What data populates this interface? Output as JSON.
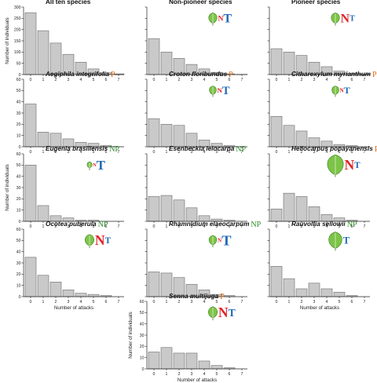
{
  "chart_data": [
    {
      "type": "bar",
      "title": "All ten species",
      "badge": "",
      "ylabel": "Number of individuals",
      "xlabel": "",
      "ylim": [
        0,
        300
      ],
      "yticks": [
        0,
        50,
        100,
        150,
        200,
        250,
        300
      ],
      "categories": [
        "0",
        "1",
        "2",
        "3",
        "4",
        "5",
        "6",
        "7"
      ],
      "values": [
        275,
        195,
        140,
        90,
        55,
        25,
        8,
        3
      ],
      "symbol": null
    },
    {
      "type": "bar",
      "title": "Non-pioneer species",
      "badge": "",
      "ylabel": "",
      "xlabel": "",
      "ylim": [
        0,
        300
      ],
      "yticks": [],
      "categories": [
        "0",
        "1",
        "2",
        "3",
        "4",
        "5",
        "6",
        "7"
      ],
      "values": [
        160,
        100,
        72,
        45,
        25,
        10,
        3,
        1
      ],
      "symbol": {
        "leaf": 0.6,
        "n": 0.6,
        "t": 1.0
      }
    },
    {
      "type": "bar",
      "title": "Pioneer species",
      "badge": "",
      "ylabel": "",
      "xlabel": "",
      "ylim": [
        0,
        300
      ],
      "yticks": [],
      "categories": [
        "0",
        "1",
        "2",
        "3",
        "4",
        "5",
        "6",
        "7"
      ],
      "values": [
        115,
        100,
        85,
        55,
        35,
        15,
        5,
        2
      ],
      "symbol": {
        "leaf": 0.6,
        "n": 1.0,
        "t": 0.65
      }
    },
    {
      "type": "bar",
      "title": "Aegiphila integrifolia",
      "badge": "P",
      "ylabel": "",
      "xlabel": "",
      "ylim": [
        0,
        60
      ],
      "yticks": [
        0,
        10,
        20,
        30,
        40,
        50,
        60
      ],
      "categories": [
        "0",
        "1",
        "2",
        "3",
        "4",
        "5",
        "6",
        "7"
      ],
      "values": [
        38,
        13,
        12,
        7,
        4,
        3,
        1,
        0
      ],
      "symbol": null
    },
    {
      "type": "bar",
      "title": "Croton floribundus",
      "badge": "P",
      "ylabel": "",
      "xlabel": "",
      "ylim": [
        0,
        60
      ],
      "yticks": [],
      "categories": [
        "0",
        "1",
        "2",
        "3",
        "4",
        "5",
        "6",
        "7"
      ],
      "values": [
        25,
        20,
        19,
        12,
        6,
        3,
        1,
        0
      ],
      "symbol": {
        "leaf": 0.5,
        "n": 0.55,
        "t": 0.9
      }
    },
    {
      "type": "bar",
      "title": "Citharexylum myrianthum",
      "badge": "P",
      "ylabel": "",
      "xlabel": "",
      "ylim": [
        0,
        60
      ],
      "yticks": [],
      "categories": [
        "0",
        "1",
        "2",
        "3",
        "4",
        "5",
        "6",
        "7"
      ],
      "values": [
        27,
        19,
        14,
        8,
        5,
        2,
        1,
        0
      ],
      "symbol": {
        "leaf": 0.5,
        "n": 0.45,
        "t": 0.75
      }
    },
    {
      "type": "bar",
      "title": "Eugenia brasiliensis",
      "badge": "NP",
      "ylabel": "Number of individuals",
      "xlabel": "",
      "ylim": [
        0,
        60
      ],
      "yticks": [
        0,
        10,
        20,
        30,
        40,
        50,
        60
      ],
      "categories": [
        "0",
        "1",
        "2",
        "3",
        "4",
        "5",
        "6",
        "7"
      ],
      "values": [
        50,
        14,
        5,
        3,
        1,
        1,
        0,
        0
      ],
      "symbol": {
        "leaf": 0.35,
        "n": 0.4,
        "t": 1.05
      }
    },
    {
      "type": "bar",
      "title": "Esenbeckia leiocarpa",
      "badge": "NP",
      "ylabel": "",
      "xlabel": "",
      "ylim": [
        0,
        60
      ],
      "yticks": [],
      "categories": [
        "0",
        "1",
        "2",
        "3",
        "4",
        "5",
        "6",
        "7"
      ],
      "values": [
        22,
        23,
        19,
        12,
        5,
        2,
        1,
        0
      ],
      "symbol": null
    },
    {
      "type": "bar",
      "title": "Heliocarpus popayanensis",
      "badge": "P",
      "ylabel": "",
      "xlabel": "",
      "ylim": [
        0,
        60
      ],
      "yticks": [],
      "categories": [
        "0",
        "1",
        "2",
        "3",
        "4",
        "5",
        "6",
        "7"
      ],
      "values": [
        11,
        25,
        22,
        13,
        6,
        3,
        1,
        0
      ],
      "symbol": {
        "leaf": 1.15,
        "n": 1.1,
        "t": 0.7
      }
    },
    {
      "type": "bar",
      "title": "Ocotea puberula",
      "badge": "NP",
      "ylabel": "",
      "xlabel": "Number of attacks",
      "ylim": [
        0,
        60
      ],
      "yticks": [
        0,
        10,
        20,
        30,
        40,
        50,
        60
      ],
      "categories": [
        "0",
        "1",
        "2",
        "3",
        "4",
        "5",
        "6",
        "7"
      ],
      "values": [
        35,
        19,
        13,
        6,
        3,
        2,
        1,
        0
      ],
      "symbol": {
        "leaf": 0.65,
        "n": 1.1,
        "t": 0.7
      }
    },
    {
      "type": "bar",
      "title": "Rhamnidium elaeocarpum",
      "badge": "NP",
      "ylabel": "",
      "xlabel": "",
      "ylim": [
        0,
        60
      ],
      "yticks": [],
      "categories": [
        "0",
        "1",
        "2",
        "3",
        "4",
        "5",
        "6",
        "7"
      ],
      "values": [
        22,
        21,
        17,
        11,
        6,
        2,
        1,
        0
      ],
      "symbol": {
        "leaf": 0.55,
        "n": 0.45,
        "t": 1.15
      }
    },
    {
      "type": "bar",
      "title": "Rauvolfia sellowii",
      "badge": "NP",
      "ylabel": "",
      "xlabel": "Number of attacks",
      "ylim": [
        0,
        60
      ],
      "yticks": [],
      "categories": [
        "0",
        "1",
        "2",
        "3",
        "4",
        "5",
        "6",
        "7"
      ],
      "values": [
        27,
        16,
        7,
        12,
        7,
        4,
        1,
        0
      ],
      "symbol": {
        "leaf": 0.95,
        "n": 0.0,
        "t": 0.8
      }
    },
    {
      "type": "bar",
      "title": "Senna multijuga",
      "badge": "P",
      "ylabel": "Number of individuals",
      "xlabel": "Number of attacks",
      "ylim": [
        0,
        60
      ],
      "yticks": [
        0,
        10,
        20,
        30,
        40,
        50,
        60
      ],
      "categories": [
        "0",
        "1",
        "2",
        "3",
        "4",
        "5",
        "6",
        "7"
      ],
      "values": [
        15,
        19,
        14,
        14,
        7,
        3,
        1,
        0
      ],
      "symbol": {
        "leaf": 0.65,
        "n": 1.1,
        "t": 0.85
      }
    }
  ],
  "symbol_letters": {
    "n": "N",
    "t": "T"
  }
}
